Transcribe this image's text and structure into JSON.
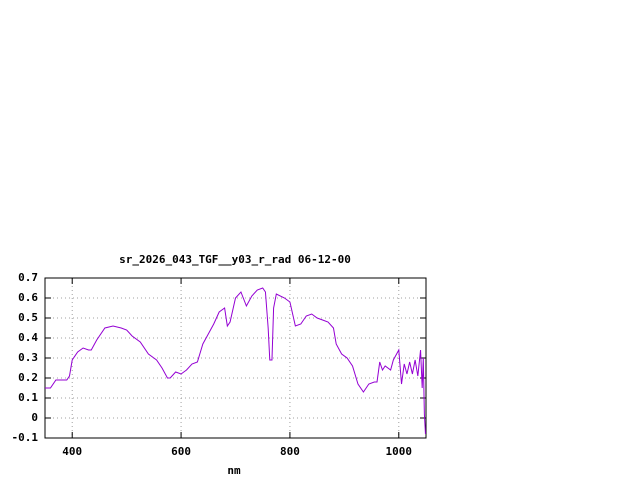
{
  "chart_data": {
    "type": "line",
    "title": "sr_2026_043_TGF__y03_r_rad 06-12-00",
    "x_label": "nm",
    "x": [
      350,
      360,
      370,
      380,
      390,
      395,
      400,
      410,
      420,
      430,
      435,
      445,
      460,
      475,
      490,
      500,
      510,
      525,
      540,
      555,
      565,
      575,
      580,
      590,
      600,
      610,
      620,
      630,
      640,
      650,
      660,
      670,
      680,
      685,
      690,
      700,
      710,
      720,
      730,
      740,
      750,
      755,
      760,
      763,
      767,
      770,
      775,
      790,
      800,
      810,
      820,
      830,
      840,
      850,
      860,
      870,
      880,
      885,
      895,
      905,
      915,
      925,
      935,
      945,
      955,
      960,
      965,
      970,
      975,
      985,
      990,
      1000,
      1005,
      1010,
      1015,
      1020,
      1025,
      1030,
      1035,
      1040,
      1043,
      1045,
      1047,
      1049
    ],
    "values": [
      0.15,
      0.15,
      0.19,
      0.19,
      0.19,
      0.21,
      0.29,
      0.33,
      0.35,
      0.34,
      0.34,
      0.39,
      0.45,
      0.46,
      0.45,
      0.44,
      0.41,
      0.38,
      0.32,
      0.29,
      0.25,
      0.2,
      0.2,
      0.23,
      0.22,
      0.24,
      0.27,
      0.28,
      0.37,
      0.42,
      0.47,
      0.53,
      0.55,
      0.46,
      0.48,
      0.6,
      0.63,
      0.56,
      0.61,
      0.64,
      0.65,
      0.63,
      0.45,
      0.29,
      0.29,
      0.55,
      0.62,
      0.6,
      0.58,
      0.46,
      0.47,
      0.51,
      0.52,
      0.5,
      0.49,
      0.48,
      0.45,
      0.37,
      0.32,
      0.3,
      0.26,
      0.17,
      0.13,
      0.17,
      0.18,
      0.18,
      0.28,
      0.24,
      0.26,
      0.24,
      0.29,
      0.34,
      0.17,
      0.27,
      0.22,
      0.28,
      0.22,
      0.29,
      0.21,
      0.34,
      0.15,
      0.3,
      0.02,
      -0.08
    ],
    "color": "#9400d3",
    "xlim": [
      350,
      1050
    ],
    "ylim": [
      -0.1,
      0.7
    ],
    "xticks": [
      400,
      600,
      800,
      1000
    ],
    "yticks": [
      -0.1,
      0,
      0.1,
      0.2,
      0.3,
      0.4,
      0.5,
      0.6,
      0.7
    ],
    "grid": true
  }
}
